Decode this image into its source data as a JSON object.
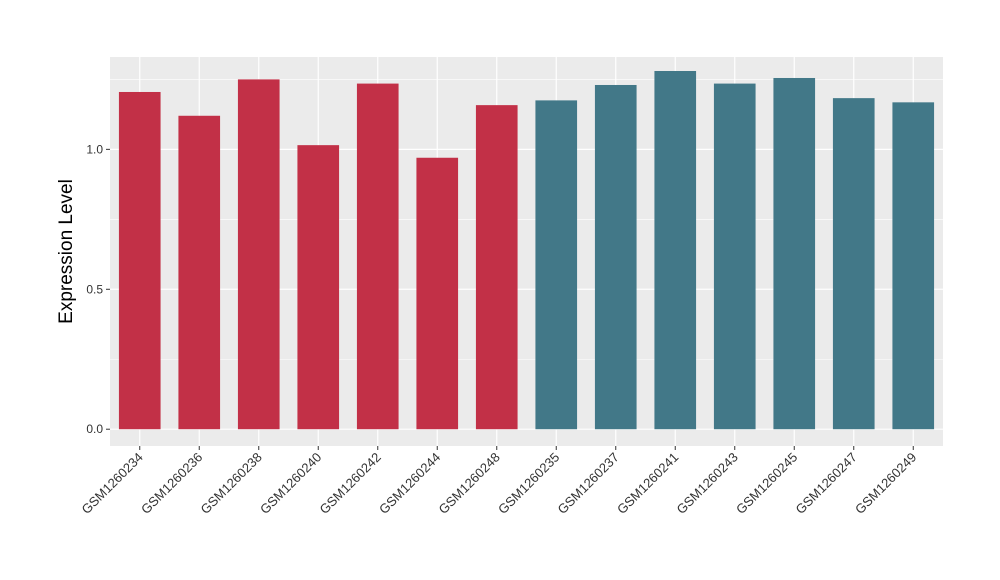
{
  "chart_data": {
    "type": "bar",
    "title": "",
    "xlabel": "",
    "ylabel": "Expression Level",
    "ylim": [
      -0.06,
      1.33
    ],
    "yticks": [
      0.0,
      0.5,
      1.0
    ],
    "ytick_labels": [
      "0.0",
      "0.5",
      "1.0"
    ],
    "grid": true,
    "panel_background": "#ebebeb",
    "categories": [
      "GSM1260234",
      "GSM1260236",
      "GSM1260238",
      "GSM1260240",
      "GSM1260242",
      "GSM1260244",
      "GSM1260248",
      "GSM1260235",
      "GSM1260237",
      "GSM1260241",
      "GSM1260243",
      "GSM1260245",
      "GSM1260247",
      "GSM1260249"
    ],
    "values": [
      1.205,
      1.12,
      1.25,
      1.015,
      1.235,
      0.97,
      1.158,
      1.175,
      1.23,
      1.28,
      1.235,
      1.255,
      1.183,
      1.168
    ],
    "bar_colors": [
      "#c23047",
      "#c23047",
      "#c23047",
      "#c23047",
      "#c23047",
      "#c23047",
      "#c23047",
      "#427888",
      "#427888",
      "#427888",
      "#427888",
      "#427888",
      "#427888",
      "#427888"
    ]
  }
}
